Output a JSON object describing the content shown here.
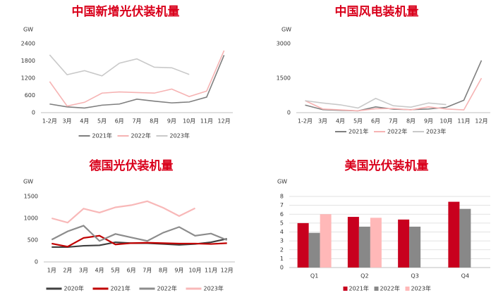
{
  "chart_data": [
    {
      "type": "line",
      "title": "中国新增光伏装机量",
      "y_label": "GW",
      "categories": [
        "1-2月",
        "3月",
        "4月",
        "5月",
        "6月",
        "7月",
        "8月",
        "9月",
        "10月",
        "11月",
        "12月"
      ],
      "series": [
        {
          "name": "2021年",
          "color": "#7f7f7f",
          "values": [
            300,
            200,
            160,
            260,
            300,
            470,
            400,
            340,
            370,
            540,
            2000
          ]
        },
        {
          "name": "2022年",
          "color": "#f6b3b3",
          "values": [
            1080,
            230,
            360,
            680,
            720,
            700,
            680,
            820,
            560,
            750,
            2160
          ]
        },
        {
          "name": "2023年",
          "color": "#c9c9c9",
          "values": [
            2010,
            1320,
            1460,
            1280,
            1720,
            1870,
            1580,
            1560,
            1330,
            null,
            null
          ]
        }
      ],
      "ylim": [
        0,
        2400
      ],
      "yticks": [
        0,
        600,
        1200,
        1800,
        2400
      ],
      "grid": false
    },
    {
      "type": "line",
      "title": "中国风电装机量",
      "y_label": "GW",
      "categories": [
        "1-2月",
        "3月",
        "4月",
        "5月",
        "6月",
        "7月",
        "8月",
        "9月",
        "10月",
        "11月",
        "12月"
      ],
      "series": [
        {
          "name": "2021年",
          "color": "#7f7f7f",
          "values": [
            330,
            130,
            100,
            80,
            250,
            150,
            130,
            160,
            230,
            540,
            2270
          ]
        },
        {
          "name": "2022年",
          "color": "#f6b3b3",
          "values": [
            520,
            160,
            120,
            80,
            170,
            180,
            120,
            250,
            160,
            120,
            1500
          ]
        },
        {
          "name": "2023年",
          "color": "#c9c9c9",
          "values": [
            520,
            420,
            340,
            200,
            620,
            300,
            240,
            420,
            350,
            null,
            null
          ]
        }
      ],
      "ylim": [
        0,
        3000
      ],
      "yticks": [
        0,
        1500,
        3000
      ],
      "grid": false
    },
    {
      "type": "line",
      "title": "德国光伏装机量",
      "y_label": "GW",
      "categories": [
        "1月",
        "2月",
        "3月",
        "4月",
        "5月",
        "6月",
        "7月",
        "8月",
        "9月",
        "10月",
        "11月",
        "12月"
      ],
      "series": [
        {
          "name": "2020年",
          "color": "#404040",
          "values": [
            340,
            340,
            370,
            380,
            450,
            430,
            430,
            410,
            390,
            410,
            450,
            530
          ]
        },
        {
          "name": "2021年",
          "color": "#c00000",
          "values": [
            420,
            350,
            550,
            600,
            400,
            430,
            440,
            430,
            420,
            420,
            410,
            430
          ]
        },
        {
          "name": "2022年",
          "color": "#8c8c8c",
          "values": [
            510,
            700,
            830,
            480,
            640,
            560,
            480,
            670,
            800,
            600,
            650,
            500
          ]
        },
        {
          "name": "2023年",
          "color": "#f8b8b8",
          "values": [
            1000,
            900,
            1220,
            1130,
            1250,
            1300,
            1390,
            1240,
            1050,
            1230,
            null,
            null
          ]
        }
      ],
      "ylim": [
        0,
        1500
      ],
      "yticks": [
        0,
        500,
        1000,
        1500
      ],
      "grid": false
    },
    {
      "type": "bar",
      "title": "美国光伏装机量",
      "y_label": "GW",
      "categories": [
        "Q1",
        "Q2",
        "Q3",
        "Q4"
      ],
      "series": [
        {
          "name": "2021年",
          "color": "#c8001e",
          "values": [
            5.0,
            5.7,
            5.4,
            7.4
          ]
        },
        {
          "name": "2022年",
          "color": "#888888",
          "values": [
            3.9,
            4.6,
            4.6,
            6.6
          ]
        },
        {
          "name": "2023年",
          "color": "#ffb8b8",
          "values": [
            6.0,
            5.6,
            null,
            null
          ]
        }
      ],
      "ylim": [
        0,
        8
      ],
      "yticks": [
        0,
        1,
        2,
        3,
        4,
        5,
        6,
        7,
        8
      ],
      "grid": true
    }
  ]
}
